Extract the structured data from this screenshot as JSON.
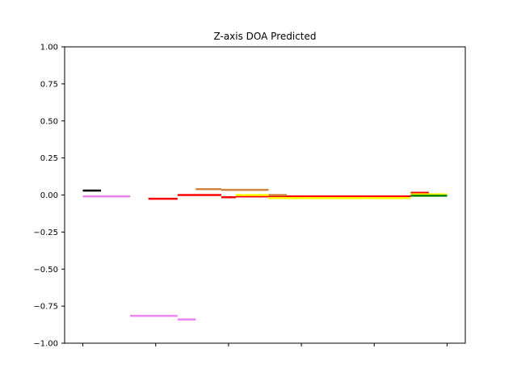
{
  "chart_data": {
    "type": "line",
    "title": "Z-axis DOA Predicted",
    "xlabel": "",
    "ylabel": "",
    "ylim": [
      -1.0,
      1.0
    ],
    "xlim": [
      -5,
      105
    ],
    "yticks": [
      1.0,
      0.75,
      0.5,
      0.25,
      0.0,
      -0.25,
      -0.5,
      -0.75,
      -1.0
    ],
    "ytick_labels": [
      "1.00",
      "0.75",
      "0.50",
      "0.25",
      "0.00",
      "−0.25",
      "−0.50",
      "−0.75",
      "−1.00"
    ],
    "xticks": [
      0,
      20,
      40,
      60,
      80,
      100
    ],
    "xtick_labels": [
      "",
      "",
      "",
      "",
      "",
      ""
    ],
    "grid": false,
    "series": [
      {
        "color": "#000000",
        "segments": [
          [
            [
              0,
              0.03
            ],
            [
              5,
              0.03
            ]
          ]
        ]
      },
      {
        "color": "#ee82ee",
        "segments": [
          [
            [
              0,
              -0.01
            ],
            [
              13,
              -0.01
            ]
          ],
          [
            [
              13,
              -0.815
            ],
            [
              26,
              -0.815
            ]
          ],
          [
            [
              26,
              -0.84
            ],
            [
              31,
              -0.84
            ]
          ]
        ]
      },
      {
        "color": "#ff0000",
        "segments": [
          [
            [
              18,
              -0.025
            ],
            [
              26,
              -0.025
            ]
          ],
          [
            [
              26,
              0.0
            ],
            [
              38,
              0.0
            ]
          ],
          [
            [
              38,
              -0.015
            ],
            [
              42,
              -0.015
            ]
          ],
          [
            [
              42,
              -0.01
            ],
            [
              49,
              -0.01
            ]
          ],
          [
            [
              49,
              -0.01
            ],
            [
              61,
              -0.01
            ]
          ],
          [
            [
              61,
              -0.01
            ],
            [
              77,
              -0.01
            ]
          ],
          [
            [
              77,
              -0.01
            ],
            [
              90,
              -0.01
            ]
          ],
          [
            [
              90,
              0.015
            ],
            [
              95,
              0.015
            ]
          ]
        ]
      },
      {
        "color": "#cd853f",
        "segments": [
          [
            [
              31,
              0.04
            ],
            [
              38,
              0.04
            ]
          ],
          [
            [
              38,
              0.035
            ],
            [
              51,
              0.035
            ]
          ],
          [
            [
              51,
              0.0
            ],
            [
              56,
              0.0
            ]
          ]
        ]
      },
      {
        "color": "#ffff00",
        "segments": [
          [
            [
              42,
              0.0
            ],
            [
              51,
              0.0
            ]
          ],
          [
            [
              51,
              -0.02
            ],
            [
              68,
              -0.02
            ]
          ],
          [
            [
              68,
              -0.02
            ],
            [
              90,
              -0.02
            ]
          ],
          [
            [
              90,
              0.005
            ],
            [
              100,
              0.005
            ]
          ]
        ]
      },
      {
        "color": "#008000",
        "segments": [
          [
            [
              90,
              -0.005
            ],
            [
              100,
              -0.005
            ]
          ]
        ]
      }
    ]
  }
}
